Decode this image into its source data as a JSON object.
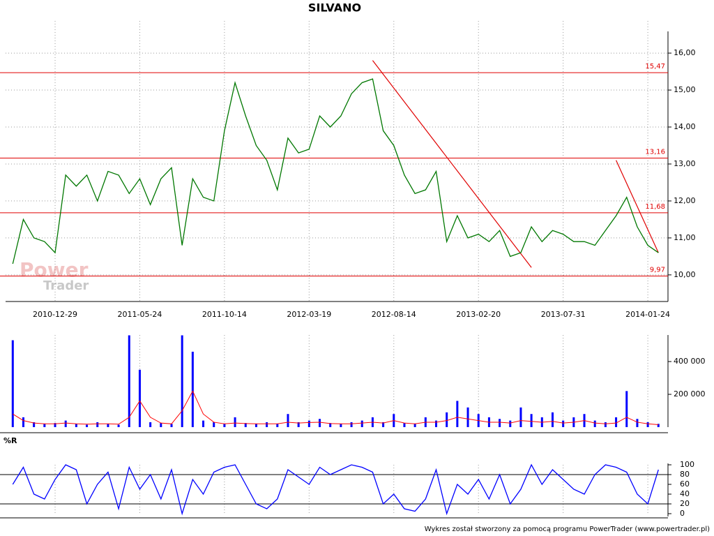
{
  "chart_data": [
    {
      "type": "line",
      "title": "SILVANO",
      "categories": [
        null,
        null,
        null,
        null,
        "2010-12-29",
        null,
        null,
        null,
        null,
        null,
        null,
        null,
        "2011-05-24",
        null,
        null,
        null,
        null,
        null,
        null,
        null,
        "2011-10-14",
        null,
        null,
        null,
        null,
        null,
        null,
        null,
        "2012-03-19",
        null,
        null,
        null,
        null,
        null,
        null,
        null,
        "2012-08-14",
        null,
        null,
        null,
        null,
        null,
        null,
        null,
        "2013-02-20",
        null,
        null,
        null,
        null,
        null,
        null,
        null,
        "2013-07-31",
        null,
        null,
        null,
        null,
        null,
        null,
        null,
        "2014-01-24",
        null
      ],
      "values": [
        10.3,
        11.5,
        11.0,
        10.9,
        10.6,
        12.7,
        12.4,
        12.7,
        12.0,
        12.8,
        12.7,
        12.2,
        12.6,
        11.9,
        12.6,
        12.9,
        10.8,
        12.6,
        12.1,
        12.0,
        13.9,
        15.2,
        14.3,
        13.5,
        13.1,
        12.3,
        13.7,
        13.3,
        13.4,
        14.3,
        14.0,
        14.3,
        14.9,
        15.2,
        15.3,
        13.9,
        13.5,
        12.7,
        12.2,
        12.3,
        12.8,
        10.9,
        11.6,
        11.0,
        11.1,
        10.9,
        11.2,
        10.5,
        10.6,
        11.3,
        10.9,
        11.2,
        11.1,
        10.9,
        10.9,
        10.8,
        11.2,
        11.6,
        12.1,
        11.3,
        10.8,
        10.6
      ],
      "color": "#007700",
      "ylim": [
        9.28,
        16.87
      ],
      "yticks": [
        {
          "value": 10,
          "label": "10,00"
        },
        {
          "value": 11,
          "label": "11,00"
        },
        {
          "value": 12,
          "label": "12,00"
        },
        {
          "value": 13,
          "label": "13,00"
        },
        {
          "value": 14,
          "label": "14,00"
        },
        {
          "value": 15,
          "label": "15,00"
        },
        {
          "value": 16,
          "label": "16,00"
        }
      ],
      "grid": true,
      "hlines": [
        {
          "value": 15.47,
          "label": "15,47"
        },
        {
          "value": 13.16,
          "label": "13,16"
        },
        {
          "value": 11.68,
          "label": "11,68"
        },
        {
          "value": 9.97,
          "label": "9,97"
        }
      ],
      "trendlines": [
        {
          "from": [
            34,
            15.8
          ],
          "to": [
            49,
            10.2
          ]
        },
        {
          "from": [
            57,
            13.1
          ],
          "to": [
            61,
            10.6
          ]
        }
      ],
      "watermark": [
        "Power",
        "Trader"
      ]
    },
    {
      "type": "bar",
      "series": [
        {
          "color": "#0000ff",
          "values": [
            530000,
            60000,
            30000,
            20000,
            25000,
            40000,
            20000,
            15000,
            30000,
            20000,
            15000,
            560000,
            350000,
            30000,
            25000,
            20000,
            560000,
            460000,
            40000,
            30000,
            20000,
            60000,
            25000,
            20000,
            30000,
            20000,
            80000,
            30000,
            40000,
            50000,
            25000,
            20000,
            30000,
            40000,
            60000,
            30000,
            80000,
            25000,
            20000,
            60000,
            40000,
            90000,
            160000,
            120000,
            80000,
            60000,
            50000,
            40000,
            120000,
            80000,
            60000,
            90000,
            40000,
            60000,
            80000,
            40000,
            30000,
            60000,
            220000,
            50000,
            30000,
            20000
          ]
        },
        {
          "color": "#ff0000",
          "values": [
            80000,
            40000,
            25000,
            20000,
            20000,
            25000,
            20000,
            18000,
            20000,
            20000,
            18000,
            60000,
            160000,
            60000,
            25000,
            20000,
            100000,
            220000,
            80000,
            30000,
            20000,
            25000,
            22000,
            20000,
            20000,
            20000,
            30000,
            25000,
            28000,
            30000,
            22000,
            20000,
            20000,
            25000,
            30000,
            25000,
            40000,
            25000,
            20000,
            30000,
            30000,
            40000,
            60000,
            50000,
            40000,
            30000,
            30000,
            25000,
            40000,
            35000,
            30000,
            35000,
            25000,
            30000,
            40000,
            25000,
            20000,
            25000,
            60000,
            30000,
            20000,
            15000
          ]
        }
      ],
      "ylim": [
        0,
        562000
      ],
      "yticks": [
        {
          "value": 200000,
          "label": "200 000"
        },
        {
          "value": 400000,
          "label": "400 000"
        }
      ]
    },
    {
      "type": "line",
      "title": "%R",
      "color": "#0000ff",
      "values": [
        60,
        95,
        40,
        30,
        70,
        100,
        90,
        20,
        60,
        85,
        10,
        95,
        50,
        80,
        30,
        90,
        0,
        70,
        40,
        85,
        95,
        100,
        60,
        20,
        10,
        30,
        90,
        75,
        60,
        95,
        80,
        90,
        100,
        95,
        85,
        20,
        40,
        10,
        5,
        30,
        90,
        0,
        60,
        40,
        70,
        30,
        80,
        20,
        50,
        100,
        60,
        90,
        70,
        50,
        40,
        80,
        100,
        95,
        85,
        40,
        20,
        90
      ],
      "ylim": [
        0,
        100
      ],
      "yticks": [
        0,
        20,
        40,
        60,
        80,
        100
      ],
      "levels": [
        20,
        80
      ]
    }
  ],
  "footer": "Wykres został stworzony za pomocą programu PowerTrader (www.powertrader.pl)"
}
